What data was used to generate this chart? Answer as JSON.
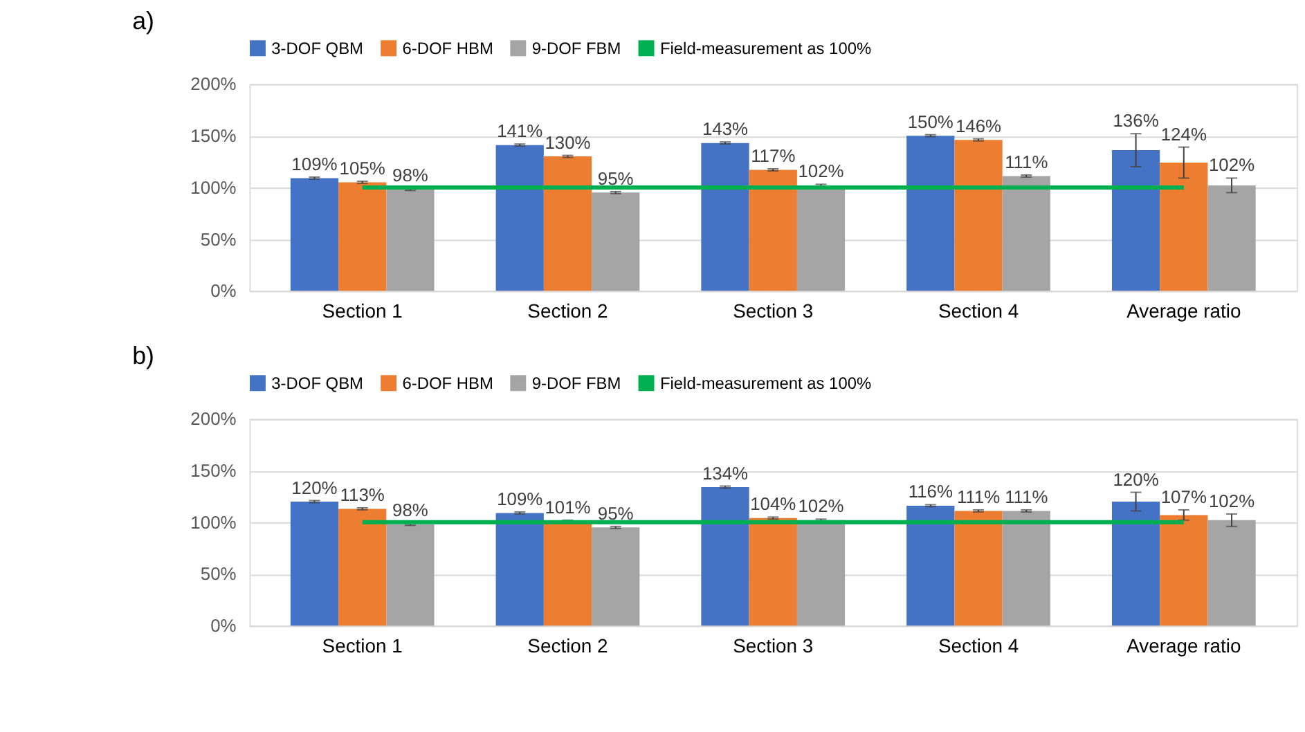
{
  "chart_data": [
    {
      "type": "bar",
      "title": "a)",
      "categories": [
        "Section 1",
        "Section 2",
        "Section 3",
        "Section 4",
        "Average ratio"
      ],
      "ylim": [
        0,
        200
      ],
      "yticks": [
        {
          "value": 0,
          "label": "0%"
        },
        {
          "value": 50,
          "label": "50%"
        },
        {
          "value": 100,
          "label": "100%"
        },
        {
          "value": 150,
          "label": "150%"
        },
        {
          "value": 200,
          "label": "200%"
        }
      ],
      "grid": "y",
      "legend": "top",
      "series": [
        {
          "name": "3-DOF QBM",
          "color": "#4472c4",
          "values": [
            109,
            141,
            143,
            150,
            136
          ],
          "errors": [
            1,
            1,
            1,
            1,
            16
          ],
          "value_labels": [
            "109%",
            "141%",
            "143%",
            "150%",
            "136%"
          ]
        },
        {
          "name": "6-DOF HBM",
          "color": "#ed7d31",
          "values": [
            105,
            130,
            117,
            146,
            124
          ],
          "errors": [
            1,
            1,
            1,
            1,
            15
          ],
          "value_labels": [
            "105%",
            "130%",
            "117%",
            "146%",
            "124%"
          ]
        },
        {
          "name": "9-DOF FBM",
          "color": "#a5a5a5",
          "values": [
            98,
            95,
            102,
            111,
            102
          ],
          "errors": [
            1,
            1,
            1,
            1,
            7
          ],
          "value_labels": [
            "98%",
            "95%",
            "102%",
            "111%",
            "102%"
          ]
        },
        {
          "name": "Field-measurement as 100%",
          "type": "line",
          "color": "#00b050",
          "values": [
            100,
            100,
            100,
            100,
            100
          ]
        }
      ]
    },
    {
      "type": "bar",
      "title": "b)",
      "categories": [
        "Section 1",
        "Section 2",
        "Section 3",
        "Section 4",
        "Average ratio"
      ],
      "ylim": [
        0,
        200
      ],
      "yticks": [
        {
          "value": 0,
          "label": "0%"
        },
        {
          "value": 50,
          "label": "50%"
        },
        {
          "value": 100,
          "label": "100%"
        },
        {
          "value": 150,
          "label": "150%"
        },
        {
          "value": 200,
          "label": "200%"
        }
      ],
      "grid": "y",
      "legend": "top",
      "series": [
        {
          "name": "3-DOF QBM",
          "color": "#4472c4",
          "values": [
            120,
            109,
            134,
            116,
            120
          ],
          "errors": [
            1,
            1,
            1,
            1,
            9
          ],
          "value_labels": [
            "120%",
            "109%",
            "134%",
            "116%",
            "120%"
          ]
        },
        {
          "name": "6-DOF HBM",
          "color": "#ed7d31",
          "values": [
            113,
            101,
            104,
            111,
            107
          ],
          "errors": [
            1,
            1,
            1,
            1,
            5
          ],
          "value_labels": [
            "113%",
            "101%",
            "104%",
            "111%",
            "107%"
          ]
        },
        {
          "name": "9-DOF FBM",
          "color": "#a5a5a5",
          "values": [
            98,
            95,
            102,
            111,
            102
          ],
          "errors": [
            1,
            1,
            1,
            1,
            6
          ],
          "value_labels": [
            "98%",
            "95%",
            "102%",
            "111%",
            "102%"
          ]
        },
        {
          "name": "Field-measurement as 100%",
          "type": "line",
          "color": "#00b050",
          "values": [
            100,
            100,
            100,
            100,
            100
          ]
        }
      ]
    }
  ]
}
